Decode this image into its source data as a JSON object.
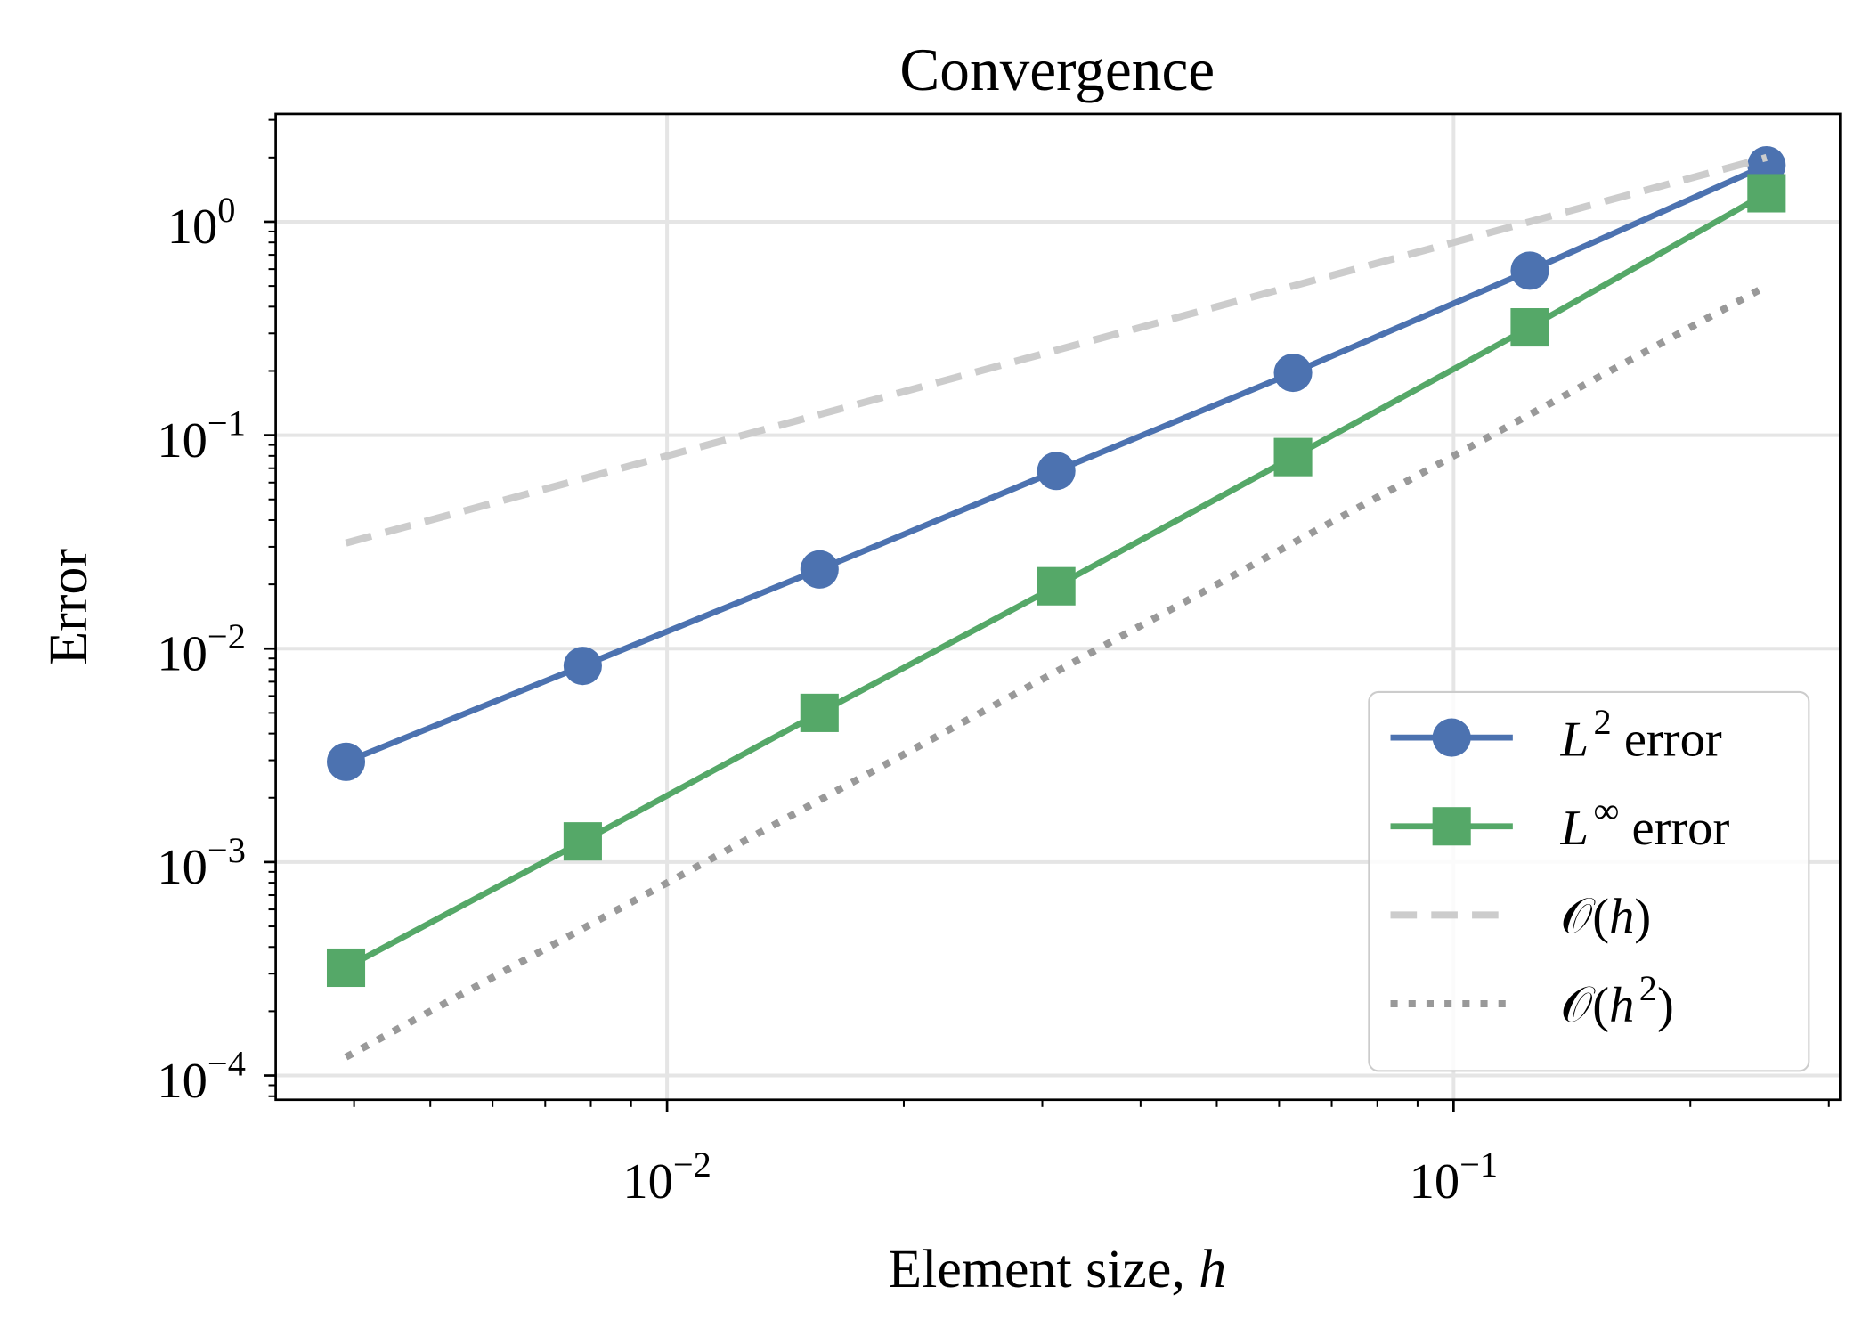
{
  "chart_data": {
    "type": "line",
    "title": "Convergence",
    "xlabel": {
      "text": "Element size, ",
      "var": "h"
    },
    "ylabel": "Error",
    "xscale": "log",
    "yscale": "log",
    "xlim": [
      0.00318,
      0.31
    ],
    "ylim": [
      7.7e-05,
      3.2
    ],
    "grid": true,
    "legend_position": "lower-right",
    "x": [
      0.00390625,
      0.0078125,
      0.015625,
      0.03125,
      0.0625,
      0.125,
      0.25
    ],
    "x_ticks": [
      {
        "value": 0.01,
        "base": "10",
        "exp": "−2"
      },
      {
        "value": 0.1,
        "base": "10",
        "exp": "−1"
      }
    ],
    "y_ticks": [
      {
        "value": 1,
        "base": "10",
        "exp": "0"
      },
      {
        "value": 0.1,
        "base": "10",
        "exp": "−1"
      },
      {
        "value": 0.01,
        "base": "10",
        "exp": "−2"
      },
      {
        "value": 0.001,
        "base": "10",
        "exp": "−3"
      },
      {
        "value": 0.0001,
        "base": "10",
        "exp": "−4"
      }
    ],
    "series": [
      {
        "key": "l2",
        "name": {
          "base": "L",
          "sup": "2",
          "rest": " error"
        },
        "color": "#4c72b0",
        "marker": "circle",
        "style": "solid",
        "values": [
          0.00295,
          0.0083,
          0.0235,
          0.068,
          0.196,
          0.59,
          1.84
        ]
      },
      {
        "key": "linf",
        "name": {
          "base": "L",
          "sup": "∞",
          "rest": " error"
        },
        "color": "#55a868",
        "marker": "square",
        "style": "solid",
        "values": [
          0.00032,
          0.00125,
          0.005,
          0.0196,
          0.079,
          0.32,
          1.36
        ]
      },
      {
        "key": "oh",
        "name": {
          "base": "𝒪(",
          "var": "h",
          "sup": "",
          "rest": ")"
        },
        "color": "#cccccc",
        "marker": "none",
        "style": "dashed",
        "values": [
          0.03125,
          0.0625,
          0.125,
          0.25,
          0.5,
          1.0,
          2.0
        ]
      },
      {
        "key": "oh2",
        "name": {
          "base": "𝒪(",
          "var": "h",
          "sup": "2",
          "rest": ")"
        },
        "color": "#999999",
        "marker": "none",
        "style": "dotted",
        "values": [
          0.000122,
          0.000488,
          0.00195,
          0.0078,
          0.03125,
          0.125,
          0.5
        ]
      }
    ]
  }
}
